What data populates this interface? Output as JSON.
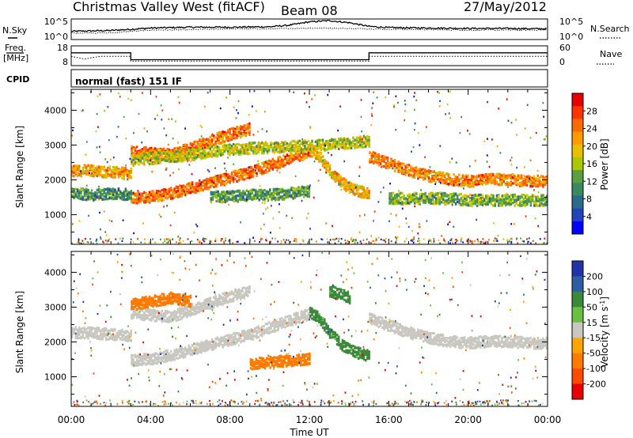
{
  "header": {
    "title": "Christmas Valley West (fitACF)",
    "beam": "Beam 08",
    "date": "27/May/2012"
  },
  "params": {
    "nsky_label": "N.Sky",
    "nsky_ticks": [
      "10^5",
      "10^0"
    ],
    "nsearch_label": "N.Search",
    "nsearch_ticks": [
      "10^5",
      "10^0"
    ],
    "freq_label": "Freq.",
    "freq_unit": "[MHz]",
    "freq_ticks": [
      "18",
      "8"
    ],
    "nave_label": "Nave",
    "nave_ticks": [
      "60",
      "0"
    ],
    "cpid_label": "CPID",
    "cpid_value": "normal (fast) 151 IF"
  },
  "chart_data": [
    {
      "type": "line",
      "title": "",
      "series": [
        {
          "name": "N.Sky",
          "x": [
            0,
            2,
            3,
            4,
            6,
            8,
            10,
            11,
            12,
            13,
            14,
            15,
            16,
            18,
            20,
            22,
            24
          ],
          "values": [
            2,
            2.2,
            2.5,
            2.8,
            3,
            3,
            3.1,
            3.5,
            4.3,
            4.6,
            4.1,
            3.2,
            2.9,
            2.8,
            2.7,
            2.7,
            2.6
          ]
        },
        {
          "name": "N.Search",
          "x": [
            0,
            2,
            3,
            4,
            6,
            8,
            10,
            12,
            14,
            16,
            18,
            20,
            22,
            24
          ],
          "values": [
            1.6,
            1.6,
            2,
            2.3,
            2.4,
            2.6,
            2.6,
            2.8,
            2.7,
            2.5,
            2.4,
            2.3,
            2.3,
            2.3
          ]
        }
      ],
      "xlim": [
        0,
        24
      ],
      "ylim": [
        0,
        5
      ]
    },
    {
      "type": "line",
      "title": "",
      "series": [
        {
          "name": "Freq.",
          "x": [
            0,
            3,
            3,
            15,
            15,
            24
          ],
          "values": [
            14.5,
            14.5,
            11,
            11,
            14.5,
            14.5
          ]
        },
        {
          "name": "Nave",
          "x": [
            0,
            0.7,
            1,
            1.5,
            3,
            3,
            15,
            15,
            24
          ],
          "values": [
            28,
            20,
            24,
            28,
            28,
            14,
            14,
            28,
            28
          ]
        }
      ],
      "xlim": [
        0,
        24
      ]
    },
    {
      "type": "heatmap",
      "title": "",
      "xlabel": "",
      "ylabel": "Slant Range [km]",
      "xlim": [
        0,
        24
      ],
      "ylim": [
        150,
        4600
      ],
      "colorbar": {
        "label": "Power [dB]",
        "ticks": [
          "28",
          "24",
          "20",
          "16",
          "12",
          "8",
          "4"
        ],
        "colors": [
          "#e80000",
          "#ff3300",
          "#ff6a00",
          "#ff9a00",
          "#e8c000",
          "#a8c800",
          "#5aa040",
          "#3a8a60",
          "#2a6a8a",
          "#2244b8",
          "#0000ff"
        ]
      },
      "bands": [
        {
          "x": [
            0,
            1,
            2,
            3
          ],
          "y": [
            2300,
            2300,
            2250,
            2200
          ],
          "value": 23
        },
        {
          "x": [
            3,
            4,
            5,
            6,
            7,
            8,
            9,
            10,
            11,
            12
          ],
          "y": [
            1500,
            1550,
            1650,
            1800,
            1950,
            2100,
            2250,
            2450,
            2650,
            2850
          ],
          "value": 26
        },
        {
          "x": [
            3,
            4,
            5,
            6,
            7,
            8,
            9
          ],
          "y": [
            2850,
            2800,
            2750,
            2950,
            3150,
            3350,
            3500
          ],
          "value": 26
        },
        {
          "x": [
            12,
            12.5,
            13,
            13.5,
            14,
            14.5,
            15
          ],
          "y": [
            2900,
            2700,
            2300,
            2000,
            1800,
            1700,
            1650
          ],
          "value": 22
        },
        {
          "x": [
            15,
            16,
            17,
            18,
            19,
            20,
            21,
            22,
            23,
            24
          ],
          "y": [
            2700,
            2500,
            2300,
            2150,
            2050,
            2000,
            2050,
            2050,
            2000,
            2000
          ],
          "value": 25
        },
        {
          "x": [
            0,
            1,
            2,
            3
          ],
          "y": [
            1650,
            1600,
            1650,
            1600
          ],
          "value": 12
        },
        {
          "x": [
            7,
            8,
            9,
            10,
            11,
            12
          ],
          "y": [
            1550,
            1550,
            1600,
            1600,
            1650,
            1700
          ],
          "value": 13
        },
        {
          "x": [
            16,
            17,
            18,
            19,
            20,
            21,
            22,
            23,
            24
          ],
          "y": [
            1500,
            1500,
            1500,
            1500,
            1450,
            1450,
            1450,
            1450,
            1450
          ],
          "value": 15
        },
        {
          "x": [
            3,
            4,
            5,
            6,
            7,
            8,
            9,
            10,
            11,
            12,
            13,
            14,
            15
          ],
          "y": [
            2600,
            2650,
            2700,
            2750,
            2850,
            2900,
            2950,
            2950,
            3000,
            3000,
            3050,
            3100,
            3150
          ],
          "value": 18
        }
      ]
    },
    {
      "type": "heatmap",
      "title": "",
      "xlabel": "Time UT",
      "ylabel": "Slant Range [km]",
      "xlim": [
        0,
        24
      ],
      "ylim": [
        150,
        4600
      ],
      "xticks": [
        "00:00",
        "04:00",
        "08:00",
        "12:00",
        "16:00",
        "20:00",
        "00:00"
      ],
      "colorbar": {
        "label": "Velocity [m s-1]",
        "ticks": [
          "200",
          "100",
          "50",
          "15",
          "-15",
          "-50",
          "-100",
          "-200"
        ],
        "colors": [
          "#2233aa",
          "#2c5ea0",
          "#3a8a3a",
          "#6ac040",
          "#c8c8c0",
          "#ffa500",
          "#ff7a00",
          "#ff4a00",
          "#e80000"
        ]
      },
      "bands": [
        {
          "x": [
            0,
            1,
            2,
            3
          ],
          "y": [
            2300,
            2300,
            2250,
            2200
          ],
          "value": 0
        },
        {
          "x": [
            3,
            4,
            5,
            6,
            7,
            8,
            9,
            10,
            11,
            12
          ],
          "y": [
            1500,
            1550,
            1650,
            1800,
            1950,
            2100,
            2250,
            2450,
            2650,
            2850
          ],
          "value": 0
        },
        {
          "x": [
            3,
            4,
            5,
            6,
            7,
            8,
            9
          ],
          "y": [
            2850,
            2800,
            2750,
            2950,
            3150,
            3350,
            3500
          ],
          "value": 0
        },
        {
          "x": [
            9,
            10,
            11,
            12
          ],
          "y": [
            1400,
            1450,
            1500,
            1550
          ],
          "value": -60
        },
        {
          "x": [
            12,
            12.5,
            13,
            13.5,
            14,
            14.5,
            15
          ],
          "y": [
            2900,
            2700,
            2300,
            2000,
            1800,
            1700,
            1650
          ],
          "value": 40
        },
        {
          "x": [
            15,
            16,
            17,
            18,
            19,
            20,
            21,
            22,
            23,
            24
          ],
          "y": [
            2700,
            2500,
            2300,
            2150,
            2050,
            2000,
            2050,
            2050,
            2000,
            2000
          ],
          "value": 0
        },
        {
          "x": [
            3,
            4,
            5,
            6
          ],
          "y": [
            3100,
            3200,
            3300,
            3200
          ],
          "value": -60
        },
        {
          "x": [
            13,
            13.5,
            14
          ],
          "y": [
            3500,
            3400,
            3300
          ],
          "value": 40
        }
      ]
    }
  ]
}
